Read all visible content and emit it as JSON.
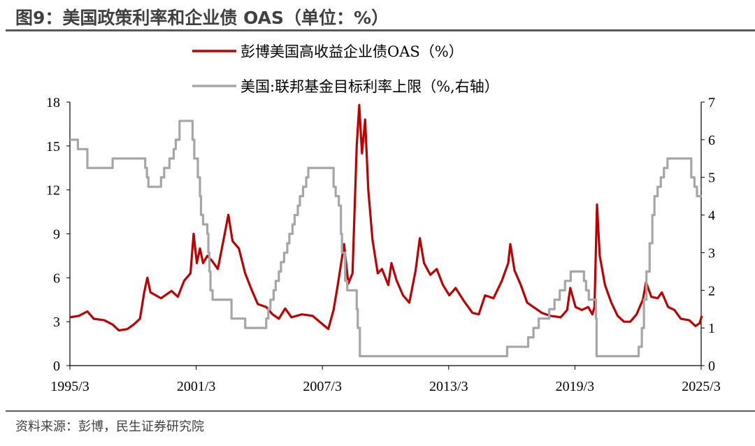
{
  "title": "图9：美国政策利率和企业债 OAS（单位：%）",
  "source": "资料来源：彭博，民生证券研究院",
  "chart_data": {
    "type": "line",
    "title": "图9：美国政策利率和企业债 OAS（单位：%）",
    "x_ticks": [
      "1995/3",
      "2001/3",
      "2007/3",
      "2013/3",
      "2019/3",
      "2025/3"
    ],
    "xlim": [
      1995.17,
      2025.17
    ],
    "left_axis": {
      "ylim": [
        0,
        18
      ],
      "ticks": [
        "0",
        "3",
        "6",
        "9",
        "12",
        "15",
        "18"
      ]
    },
    "right_axis": {
      "ylim": [
        0,
        7
      ],
      "ticks": [
        "0",
        "1",
        "2",
        "3",
        "4",
        "5",
        "6",
        "7"
      ]
    },
    "grid": false,
    "legend_placement": "top-center",
    "series": [
      {
        "name": "彭博美国高收益企业债OAS（%）",
        "axis": "left",
        "color": "#C00000",
        "points": [
          [
            1995.17,
            3.3
          ],
          [
            1995.6,
            3.4
          ],
          [
            1996.0,
            3.7
          ],
          [
            1996.3,
            3.2
          ],
          [
            1996.8,
            3.1
          ],
          [
            1997.2,
            2.8
          ],
          [
            1997.5,
            2.4
          ],
          [
            1997.9,
            2.5
          ],
          [
            1998.2,
            2.8
          ],
          [
            1998.5,
            3.2
          ],
          [
            1998.7,
            5.0
          ],
          [
            1998.85,
            6.0
          ],
          [
            1999.0,
            5.0
          ],
          [
            1999.5,
            4.6
          ],
          [
            2000.0,
            5.1
          ],
          [
            2000.3,
            4.7
          ],
          [
            2000.6,
            5.8
          ],
          [
            2000.9,
            6.3
          ],
          [
            2001.05,
            9.0
          ],
          [
            2001.2,
            7.0
          ],
          [
            2001.35,
            8.0
          ],
          [
            2001.5,
            7.0
          ],
          [
            2001.7,
            7.5
          ],
          [
            2001.9,
            7.2
          ],
          [
            2002.2,
            6.6
          ],
          [
            2002.5,
            8.8
          ],
          [
            2002.7,
            10.3
          ],
          [
            2002.9,
            8.5
          ],
          [
            2003.2,
            8.0
          ],
          [
            2003.5,
            6.3
          ],
          [
            2003.8,
            5.2
          ],
          [
            2004.1,
            4.2
          ],
          [
            2004.5,
            4.0
          ],
          [
            2004.8,
            3.5
          ],
          [
            2005.1,
            3.2
          ],
          [
            2005.4,
            3.9
          ],
          [
            2005.7,
            3.3
          ],
          [
            2006.2,
            3.5
          ],
          [
            2006.7,
            3.4
          ],
          [
            2007.2,
            2.8
          ],
          [
            2007.45,
            2.5
          ],
          [
            2007.7,
            3.8
          ],
          [
            2007.9,
            5.5
          ],
          [
            2008.2,
            8.3
          ],
          [
            2008.4,
            5.6
          ],
          [
            2008.6,
            6.3
          ],
          [
            2008.8,
            15.0
          ],
          [
            2008.92,
            17.8
          ],
          [
            2009.05,
            14.5
          ],
          [
            2009.2,
            16.8
          ],
          [
            2009.35,
            12.0
          ],
          [
            2009.55,
            8.6
          ],
          [
            2009.8,
            6.3
          ],
          [
            2010.0,
            6.6
          ],
          [
            2010.3,
            5.5
          ],
          [
            2010.45,
            7.0
          ],
          [
            2010.7,
            5.8
          ],
          [
            2011.0,
            4.8
          ],
          [
            2011.3,
            4.3
          ],
          [
            2011.6,
            6.5
          ],
          [
            2011.8,
            8.7
          ],
          [
            2012.0,
            7.0
          ],
          [
            2012.3,
            6.2
          ],
          [
            2012.6,
            6.6
          ],
          [
            2012.9,
            5.5
          ],
          [
            2013.2,
            4.8
          ],
          [
            2013.5,
            5.3
          ],
          [
            2013.9,
            4.4
          ],
          [
            2014.3,
            3.6
          ],
          [
            2014.6,
            3.5
          ],
          [
            2014.9,
            4.8
          ],
          [
            2015.3,
            4.6
          ],
          [
            2015.7,
            5.8
          ],
          [
            2016.0,
            7.0
          ],
          [
            2016.1,
            8.3
          ],
          [
            2016.3,
            6.5
          ],
          [
            2016.6,
            5.5
          ],
          [
            2016.9,
            4.3
          ],
          [
            2017.3,
            3.9
          ],
          [
            2017.6,
            3.6
          ],
          [
            2018.0,
            3.4
          ],
          [
            2018.5,
            3.3
          ],
          [
            2018.8,
            3.8
          ],
          [
            2018.95,
            5.3
          ],
          [
            2019.2,
            4.0
          ],
          [
            2019.5,
            3.8
          ],
          [
            2019.8,
            4.0
          ],
          [
            2020.0,
            3.5
          ],
          [
            2020.1,
            4.0
          ],
          [
            2020.22,
            11.0
          ],
          [
            2020.35,
            7.5
          ],
          [
            2020.6,
            5.5
          ],
          [
            2020.9,
            4.3
          ],
          [
            2021.2,
            3.4
          ],
          [
            2021.5,
            3.0
          ],
          [
            2021.8,
            3.0
          ],
          [
            2022.1,
            3.5
          ],
          [
            2022.4,
            4.5
          ],
          [
            2022.55,
            5.7
          ],
          [
            2022.8,
            4.7
          ],
          [
            2023.1,
            4.6
          ],
          [
            2023.3,
            5.0
          ],
          [
            2023.6,
            4.0
          ],
          [
            2023.9,
            3.8
          ],
          [
            2024.2,
            3.2
          ],
          [
            2024.6,
            3.1
          ],
          [
            2024.9,
            2.7
          ],
          [
            2025.1,
            2.9
          ],
          [
            2025.2,
            3.4
          ]
        ]
      },
      {
        "name": "美国:联邦基金目标利率上限（%,右轴）",
        "axis": "right",
        "color": "#A6A6A6",
        "step": true,
        "points": [
          [
            1995.17,
            6.0
          ],
          [
            1995.55,
            5.75
          ],
          [
            1996.0,
            5.25
          ],
          [
            1997.2,
            5.5
          ],
          [
            1998.75,
            5.25
          ],
          [
            1998.83,
            5.0
          ],
          [
            1998.9,
            4.75
          ],
          [
            1999.5,
            5.0
          ],
          [
            1999.65,
            5.25
          ],
          [
            1999.9,
            5.5
          ],
          [
            2000.1,
            5.75
          ],
          [
            2000.2,
            6.0
          ],
          [
            2000.38,
            6.5
          ],
          [
            2001.0,
            6.0
          ],
          [
            2001.08,
            5.5
          ],
          [
            2001.25,
            5.0
          ],
          [
            2001.35,
            4.5
          ],
          [
            2001.4,
            4.0
          ],
          [
            2001.5,
            3.75
          ],
          [
            2001.7,
            3.5
          ],
          [
            2001.75,
            3.0
          ],
          [
            2001.8,
            2.5
          ],
          [
            2001.85,
            2.0
          ],
          [
            2001.95,
            1.75
          ],
          [
            2002.85,
            1.25
          ],
          [
            2003.5,
            1.0
          ],
          [
            2004.5,
            1.25
          ],
          [
            2004.6,
            1.5
          ],
          [
            2004.7,
            1.75
          ],
          [
            2004.85,
            2.0
          ],
          [
            2004.95,
            2.25
          ],
          [
            2005.1,
            2.5
          ],
          [
            2005.2,
            2.75
          ],
          [
            2005.35,
            3.0
          ],
          [
            2005.5,
            3.25
          ],
          [
            2005.6,
            3.5
          ],
          [
            2005.75,
            3.75
          ],
          [
            2005.85,
            4.0
          ],
          [
            2006.0,
            4.25
          ],
          [
            2006.1,
            4.5
          ],
          [
            2006.25,
            4.75
          ],
          [
            2006.4,
            5.0
          ],
          [
            2006.5,
            5.25
          ],
          [
            2007.7,
            4.75
          ],
          [
            2007.8,
            4.5
          ],
          [
            2007.95,
            4.25
          ],
          [
            2008.05,
            3.5
          ],
          [
            2008.1,
            3.0
          ],
          [
            2008.25,
            2.25
          ],
          [
            2008.35,
            2.0
          ],
          [
            2008.8,
            1.5
          ],
          [
            2008.85,
            1.0
          ],
          [
            2008.95,
            0.25
          ],
          [
            2015.95,
            0.5
          ],
          [
            2016.95,
            0.75
          ],
          [
            2017.2,
            1.0
          ],
          [
            2017.45,
            1.25
          ],
          [
            2017.95,
            1.5
          ],
          [
            2018.2,
            1.75
          ],
          [
            2018.45,
            2.0
          ],
          [
            2018.7,
            2.25
          ],
          [
            2018.97,
            2.5
          ],
          [
            2019.6,
            2.25
          ],
          [
            2019.7,
            2.0
          ],
          [
            2019.83,
            1.75
          ],
          [
            2020.17,
            1.25
          ],
          [
            2020.2,
            0.25
          ],
          [
            2022.2,
            0.5
          ],
          [
            2022.35,
            1.0
          ],
          [
            2022.45,
            1.75
          ],
          [
            2022.57,
            2.5
          ],
          [
            2022.72,
            3.25
          ],
          [
            2022.85,
            4.0
          ],
          [
            2022.95,
            4.5
          ],
          [
            2023.1,
            4.75
          ],
          [
            2023.25,
            5.0
          ],
          [
            2023.4,
            5.25
          ],
          [
            2023.57,
            5.5
          ],
          [
            2024.7,
            5.0
          ],
          [
            2024.85,
            4.75
          ],
          [
            2024.97,
            4.5
          ],
          [
            2025.2,
            4.5
          ]
        ]
      }
    ]
  }
}
